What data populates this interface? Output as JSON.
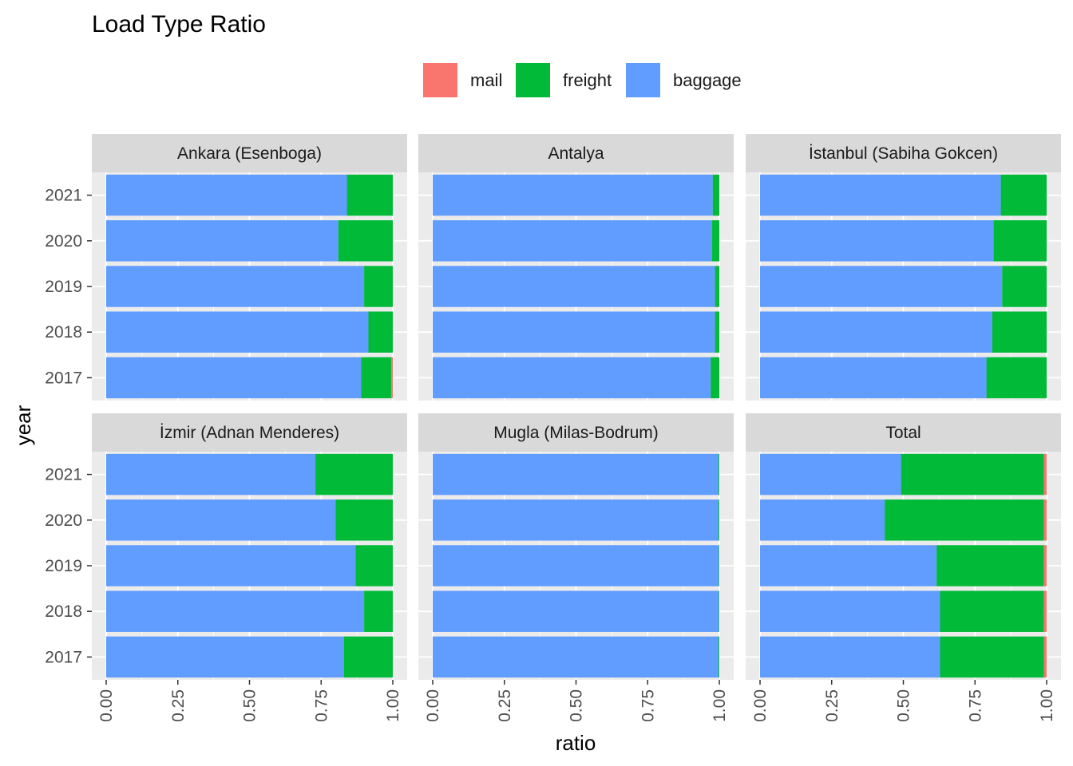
{
  "chart_data": {
    "type": "bar",
    "orientation": "horizontal",
    "stacked": true,
    "title": "Load Type Ratio",
    "xlabel": "ratio",
    "ylabel": "year",
    "xlim": [
      0,
      1
    ],
    "x_ticks": [
      "0.00",
      "0.25",
      "0.50",
      "0.75",
      "1.00"
    ],
    "categories": [
      "2017",
      "2018",
      "2019",
      "2020",
      "2021"
    ],
    "legend": {
      "position": "top",
      "entries": [
        {
          "name": "mail",
          "color": "#F8766D"
        },
        {
          "name": "freight",
          "color": "#00BA38"
        },
        {
          "name": "baggage",
          "color": "#619CFF"
        }
      ]
    },
    "panel_background": "#EBEBEB",
    "strip_background": "#D9D9D9",
    "grid": true,
    "panels": [
      {
        "name": "Ankara (Esenboga)",
        "series": [
          {
            "name": "baggage",
            "values": [
              0.89,
              0.915,
              0.9,
              0.81,
              0.84
            ]
          },
          {
            "name": "freight",
            "values": [
              0.105,
              0.085,
              0.1,
              0.19,
              0.16
            ]
          },
          {
            "name": "mail",
            "values": [
              0.005,
              0.0,
              0.0,
              0.0,
              0.0
            ]
          }
        ]
      },
      {
        "name": "Antalya",
        "series": [
          {
            "name": "baggage",
            "values": [
              0.97,
              0.985,
              0.985,
              0.975,
              0.977
            ]
          },
          {
            "name": "freight",
            "values": [
              0.03,
              0.015,
              0.015,
              0.025,
              0.023
            ]
          },
          {
            "name": "mail",
            "values": [
              0.0,
              0.0,
              0.0,
              0.0,
              0.0
            ]
          }
        ]
      },
      {
        "name": "İstanbul (Sabiha Gokcen)",
        "series": [
          {
            "name": "baggage",
            "values": [
              0.79,
              0.81,
              0.845,
              0.815,
              0.84
            ]
          },
          {
            "name": "freight",
            "values": [
              0.21,
              0.19,
              0.155,
              0.185,
              0.16
            ]
          },
          {
            "name": "mail",
            "values": [
              0.0,
              0.0,
              0.0,
              0.0,
              0.0
            ]
          }
        ]
      },
      {
        "name": "İzmir (Adnan Menderes)",
        "series": [
          {
            "name": "baggage",
            "values": [
              0.83,
              0.9,
              0.87,
              0.8,
              0.73
            ]
          },
          {
            "name": "freight",
            "values": [
              0.17,
              0.1,
              0.13,
              0.2,
              0.27
            ]
          },
          {
            "name": "mail",
            "values": [
              0.0,
              0.0,
              0.0,
              0.0,
              0.0
            ]
          }
        ]
      },
      {
        "name": "Mugla (Milas-Bodrum)",
        "series": [
          {
            "name": "baggage",
            "values": [
              0.997,
              0.998,
              0.998,
              0.997,
              0.997
            ]
          },
          {
            "name": "freight",
            "values": [
              0.003,
              0.002,
              0.002,
              0.003,
              0.003
            ]
          },
          {
            "name": "mail",
            "values": [
              0.0,
              0.0,
              0.0,
              0.0,
              0.0
            ]
          }
        ]
      },
      {
        "name": "Total",
        "series": [
          {
            "name": "baggage",
            "values": [
              0.628,
              0.628,
              0.616,
              0.435,
              0.492
            ]
          },
          {
            "name": "freight",
            "values": [
              0.363,
              0.362,
              0.374,
              0.555,
              0.498
            ]
          },
          {
            "name": "mail",
            "values": [
              0.009,
              0.01,
              0.01,
              0.01,
              0.01
            ]
          }
        ]
      }
    ]
  }
}
